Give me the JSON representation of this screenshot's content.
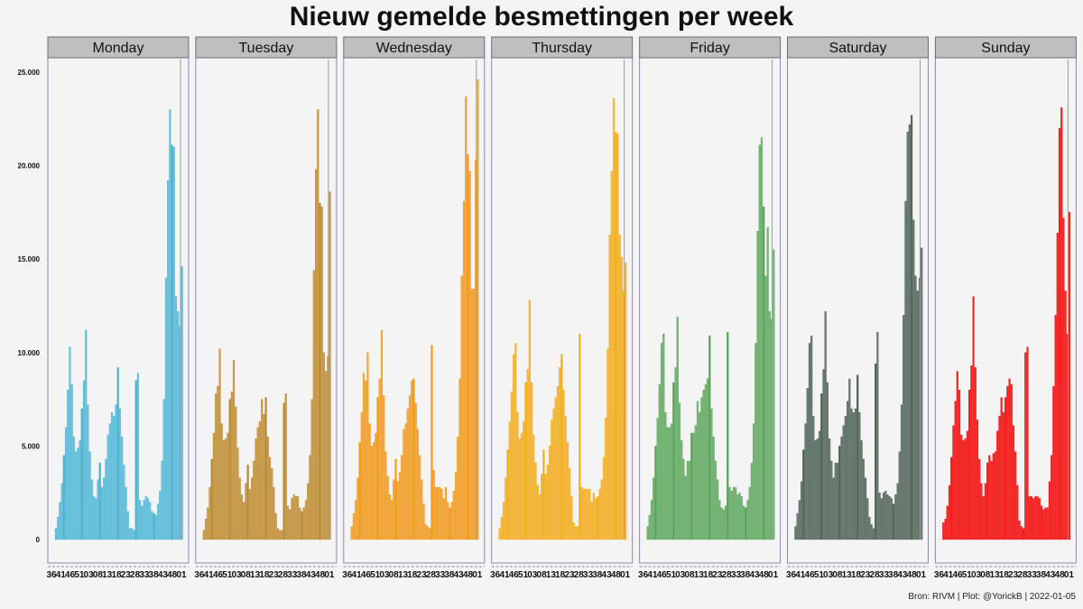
{
  "chart_data": {
    "type": "bar",
    "title": "Nieuw gemelde besmettingen per week",
    "caption": "Bron: RIVM | Plot: @YorickB |  2022-01-05",
    "ylim": [
      0,
      26000
    ],
    "yticks": [
      0,
      5000,
      10000,
      15000,
      20000,
      25000
    ],
    "ytick_labels": [
      "0",
      "5.000",
      "10.000",
      "15.000",
      "20.000",
      "25.000"
    ],
    "xtick_labels": [
      "36",
      "41",
      "46",
      "51",
      "03",
      "08",
      "13",
      "18",
      "23",
      "28",
      "33",
      "38",
      "43",
      "48",
      "01"
    ],
    "xlabel": "",
    "ylabel": "",
    "panels": [
      {
        "name": "Monday",
        "color": "#5bc0de",
        "dark": "#3fa8c8",
        "values": [
          600,
          1200,
          2000,
          3000,
          4500,
          6000,
          8000,
          10300,
          8300,
          5500,
          4700,
          4900,
          5300,
          7000,
          8500,
          11200,
          7200,
          4700,
          3200,
          2300,
          2200,
          3200,
          4100,
          2800,
          3300,
          4300,
          5600,
          6200,
          6800,
          6600,
          7200,
          9200,
          7000,
          5500,
          4000,
          2800,
          1500,
          600,
          600,
          500,
          8500,
          8900,
          2100,
          1800,
          2100,
          2300,
          2200,
          2000,
          1500,
          1400,
          1300,
          1900,
          2600,
          4200,
          7500,
          14000,
          19200,
          23000,
          21100,
          21000,
          13000,
          12200,
          11400,
          14600
        ]
      },
      {
        "name": "Tuesday",
        "color": "#c8953a",
        "dark": "#b07e26",
        "values": [
          500,
          1100,
          1700,
          2800,
          4300,
          5700,
          7800,
          8200,
          10200,
          6200,
          5300,
          5400,
          5700,
          7500,
          7900,
          9600,
          7100,
          4900,
          3300,
          2400,
          2000,
          3000,
          4000,
          2700,
          3300,
          4200,
          5400,
          6000,
          6300,
          7500,
          6700,
          7600,
          5500,
          4400,
          3800,
          2800,
          1400,
          600,
          500,
          500,
          7300,
          7800,
          1800,
          1600,
          2200,
          2400,
          2300,
          2300,
          1700,
          1500,
          1700,
          2100,
          3000,
          4500,
          7500,
          14400,
          19800,
          23000,
          18000,
          17800,
          10000,
          9000,
          9800,
          18600
        ]
      },
      {
        "name": "Wednesday",
        "color": "#f2a02e",
        "dark": "#f09000",
        "values": [
          700,
          1400,
          2100,
          3300,
          5200,
          6800,
          8900,
          8500,
          10000,
          6200,
          5000,
          5200,
          5700,
          7600,
          8600,
          11200,
          7700,
          4700,
          3400,
          2400,
          2100,
          3200,
          4300,
          3100,
          3600,
          4500,
          5900,
          6200,
          7000,
          7700,
          8500,
          8600,
          7300,
          5900,
          4500,
          3200,
          1900,
          800,
          700,
          600,
          10400,
          3700,
          2800,
          2800,
          2800,
          2700,
          2200,
          2800,
          2000,
          1700,
          2000,
          2600,
          3600,
          5500,
          8600,
          14100,
          18100,
          23700,
          20600,
          19700,
          13400,
          13400,
          20300,
          24600
        ]
      },
      {
        "name": "Thursday",
        "color": "#f5b030",
        "dark": "#f0a800",
        "values": [
          600,
          1200,
          2000,
          3300,
          4800,
          6300,
          7900,
          9900,
          10500,
          6800,
          5400,
          5700,
          6300,
          8400,
          9100,
          12800,
          8400,
          5600,
          4100,
          2900,
          2400,
          3500,
          4800,
          3500,
          4000,
          5000,
          6400,
          7000,
          7600,
          8200,
          9200,
          9900,
          8000,
          6600,
          5200,
          3800,
          2300,
          900,
          700,
          700,
          11000,
          2800,
          2700,
          2700,
          2700,
          2700,
          2000,
          2500,
          2200,
          2300,
          2700,
          3200,
          4400,
          6500,
          10200,
          16300,
          19700,
          23600,
          21800,
          21700,
          16300,
          15100,
          13300,
          14800
        ]
      },
      {
        "name": "Friday",
        "color": "#6aaf6a",
        "dark": "#4a9a4a",
        "values": [
          700,
          1300,
          2100,
          3300,
          5000,
          6500,
          8300,
          10500,
          11000,
          6800,
          6000,
          6000,
          6200,
          8400,
          9200,
          11900,
          7300,
          5300,
          4300,
          3400,
          4200,
          4200,
          5700,
          5700,
          6100,
          7400,
          6800,
          7600,
          8000,
          8300,
          8600,
          10900,
          7000,
          5500,
          4200,
          3200,
          2100,
          1700,
          1600,
          1800,
          11100,
          2800,
          2600,
          2800,
          2800,
          2400,
          2500,
          2300,
          1800,
          1700,
          2100,
          2800,
          4100,
          6200,
          10500,
          16500,
          21100,
          21500,
          17800,
          14100,
          16700,
          12200,
          11800,
          15500
        ]
      },
      {
        "name": "Saturday",
        "color": "#5b6e62",
        "dark": "#3f5448",
        "values": [
          700,
          1400,
          2100,
          3100,
          4800,
          6200,
          8100,
          10500,
          10900,
          6600,
          5300,
          5400,
          5800,
          7800,
          9100,
          12200,
          8400,
          5400,
          4200,
          3300,
          4100,
          4100,
          5000,
          5500,
          6100,
          6600,
          7400,
          8600,
          7000,
          6800,
          7000,
          8800,
          6800,
          5300,
          4300,
          3300,
          2200,
          1200,
          800,
          600,
          9400,
          11100,
          2500,
          2200,
          2500,
          2600,
          2400,
          2300,
          2200,
          1900,
          2400,
          3000,
          4700,
          7200,
          12000,
          18100,
          21800,
          22200,
          22700,
          17100,
          14100,
          13300,
          14000,
          15600
        ]
      },
      {
        "name": "Sunday",
        "color": "#ee1111",
        "dark": "#ff0000",
        "values": [
          900,
          1100,
          1800,
          2900,
          4400,
          6100,
          7400,
          9000,
          8000,
          5600,
          5300,
          5400,
          5800,
          8000,
          9300,
          13000,
          9200,
          6400,
          4300,
          3000,
          2300,
          3000,
          4100,
          4500,
          4200,
          4600,
          4700,
          5800,
          6600,
          7600,
          6800,
          7600,
          8200,
          8600,
          8300,
          6100,
          4700,
          2900,
          1000,
          700,
          600,
          10000,
          10300,
          2300,
          2300,
          2200,
          2300,
          2300,
          2200,
          1800,
          1600,
          1700,
          1700,
          3100,
          4500,
          8200,
          12000,
          16400,
          22000,
          23100,
          17200,
          13300,
          11000,
          17500
        ]
      }
    ]
  }
}
